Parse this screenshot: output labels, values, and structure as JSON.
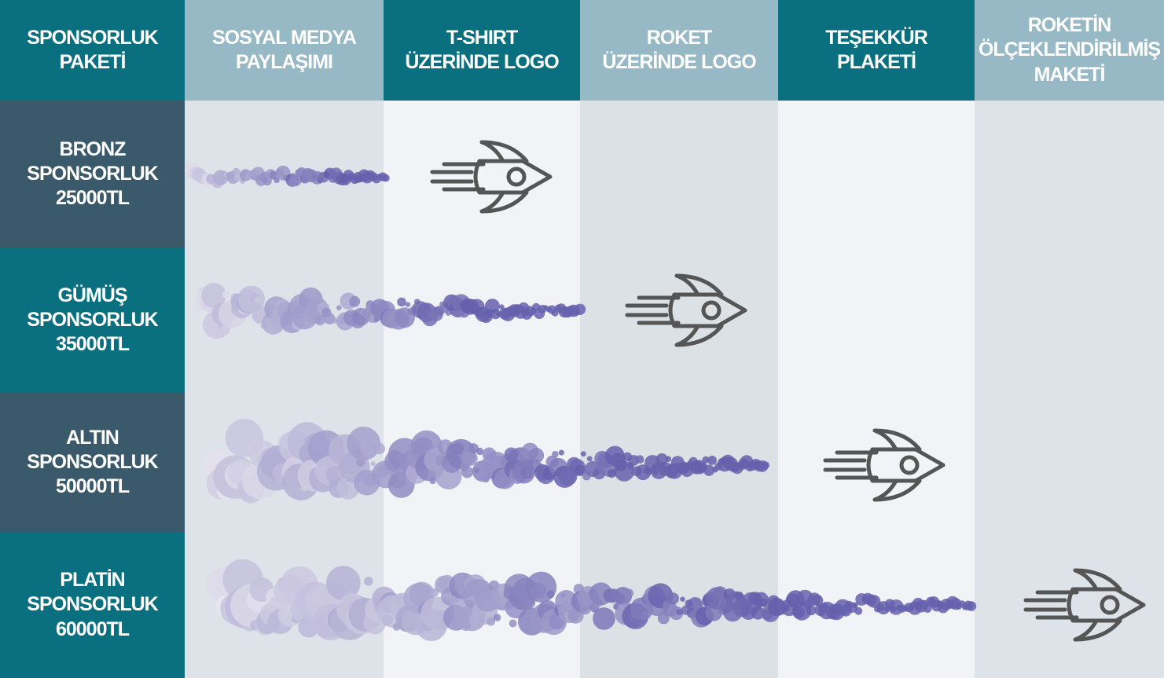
{
  "header": {
    "columns": [
      [
        "SPONSORLUK",
        "PAKETİ"
      ],
      [
        "SOSYAL MEDYA",
        "PAYLAŞIMI"
      ],
      [
        "T-SHIRT",
        "ÜZERİNDE LOGO"
      ],
      [
        "ROKET",
        "ÜZERİNDE LOGO"
      ],
      [
        "TEŞEKKÜR",
        "PLAKETİ"
      ],
      [
        "ROKETİN",
        "ÖLÇEKLENDİRİLMİŞ",
        "MAKETİ"
      ]
    ]
  },
  "rows": [
    [
      "BRONZ",
      "SPONSORLUK",
      "25000TL"
    ],
    [
      "GÜMÜŞ",
      "SPONSORLUK",
      "35000TL"
    ],
    [
      "ALTIN",
      "SPONSORLUK",
      "50000TL"
    ],
    [
      "PLATİN",
      "SPONSORLUK",
      "60000TL"
    ]
  ]
}
